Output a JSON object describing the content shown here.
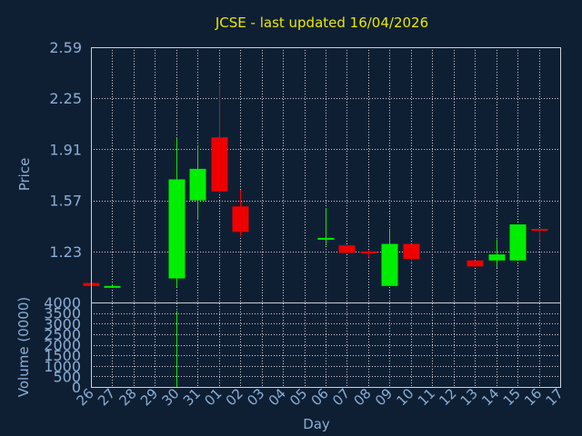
{
  "chart_data": {
    "type": "candlestick",
    "title": "JCSE - last updated 16/04/2026",
    "xlabel": "Day",
    "ylabel": "Price",
    "volume_label": "Volume (0000)",
    "price_ticks": [
      "2.59",
      "2.25",
      "1.91",
      "1.57",
      "1.23"
    ],
    "price_tick_values": [
      2.59,
      2.25,
      1.91,
      1.57,
      1.23
    ],
    "ylim": [
      0.89,
      2.59
    ],
    "volume_ticks": [
      "4000",
      "3500",
      "3000",
      "2500",
      "2000",
      "1500",
      "1000",
      "500",
      "0"
    ],
    "volume_tick_values": [
      4000,
      3500,
      3000,
      2500,
      2000,
      1500,
      1000,
      500,
      0
    ],
    "volume_ylim": [
      0,
      4000
    ],
    "categories": [
      "26",
      "27",
      "28",
      "29",
      "30",
      "31",
      "01",
      "02",
      "03",
      "04",
      "05",
      "06",
      "07",
      "08",
      "09",
      "10",
      "11",
      "12",
      "13",
      "14",
      "15",
      "16",
      "17"
    ],
    "candles": [
      {
        "i": 0,
        "open": 1.02,
        "close": 1.0,
        "high": 1.02,
        "low": 1.0,
        "volume": 0
      },
      {
        "i": 1,
        "open": 1.0,
        "close": 1.0,
        "high": 1.01,
        "low": 0.99,
        "volume": 0
      },
      {
        "i": 4,
        "open": 1.05,
        "close": 1.71,
        "high": 1.99,
        "low": 0.99,
        "volume": 3600
      },
      {
        "i": 5,
        "open": 1.57,
        "close": 1.78,
        "high": 1.94,
        "low": 1.44,
        "volume": 0
      },
      {
        "i": 6,
        "open": 1.99,
        "close": 1.63,
        "high": 2.34,
        "low": 1.62,
        "volume": 20
      },
      {
        "i": 7,
        "open": 1.53,
        "close": 1.36,
        "high": 1.64,
        "low": 1.33,
        "volume": 0
      },
      {
        "i": 11,
        "open": 1.31,
        "close": 1.32,
        "high": 1.52,
        "low": 1.27,
        "volume": 0
      },
      {
        "i": 12,
        "open": 1.27,
        "close": 1.22,
        "high": 1.27,
        "low": 1.22,
        "volume": 0
      },
      {
        "i": 13,
        "open": 1.23,
        "close": 1.22,
        "high": 1.24,
        "low": 1.19,
        "volume": 0
      },
      {
        "i": 14,
        "open": 1.0,
        "close": 1.28,
        "high": 1.38,
        "low": 1.0,
        "volume": 0
      },
      {
        "i": 15,
        "open": 1.28,
        "close": 1.18,
        "high": 1.28,
        "low": 1.16,
        "volume": 0
      },
      {
        "i": 18,
        "open": 1.17,
        "close": 1.13,
        "high": 1.17,
        "low": 1.13,
        "volume": 0
      },
      {
        "i": 19,
        "open": 1.17,
        "close": 1.21,
        "high": 1.31,
        "low": 1.12,
        "volume": 0
      },
      {
        "i": 20,
        "open": 1.17,
        "close": 1.41,
        "high": 1.41,
        "low": 1.17,
        "volume": 0
      },
      {
        "i": 21,
        "open": 1.38,
        "close": 1.37,
        "high": 1.38,
        "low": 1.3,
        "volume": 0
      }
    ],
    "up_color": "#00ee00",
    "down_color": "#ee0000",
    "grid": true
  }
}
